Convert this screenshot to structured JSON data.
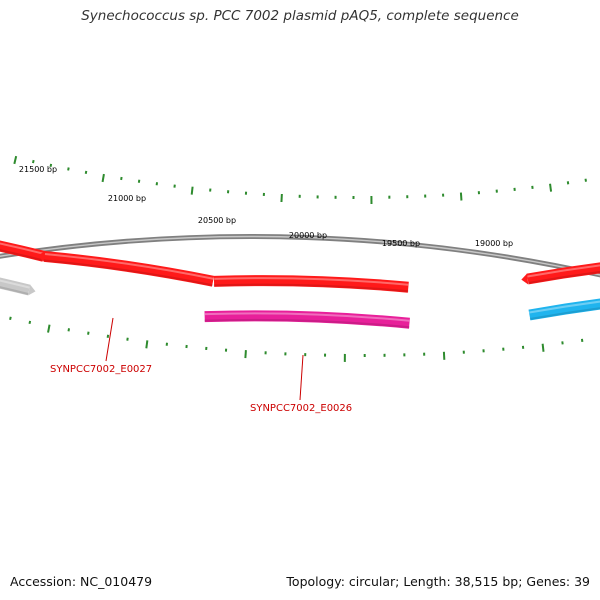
{
  "title": "Synechococcus sp. PCC 7002 plasmid pAQ5, complete sequence",
  "footer": {
    "accession": "Accession: NC_010479",
    "summary": "Topology: circular; Length: 38,515 bp; Genes: 39"
  },
  "scale_labels": [
    "21500 bp",
    "21000 bp",
    "20500 bp",
    "20000 bp",
    "19500 bp",
    "19000 bp"
  ],
  "gene_labels": [
    {
      "id": "SYNPCC7002_E0027",
      "color": "#cc0000"
    },
    {
      "id": "SYNPCC7002_E0026",
      "color": "#cc0000"
    }
  ],
  "colors": {
    "backbone": "#808080",
    "tick": "#2e8b2e",
    "gene_red": "#ff1a1a",
    "gene_magenta": "#e8209a",
    "gene_gray": "#c8c8c8",
    "gene_cyan": "#20b4ee",
    "label_red": "#cc0000"
  }
}
